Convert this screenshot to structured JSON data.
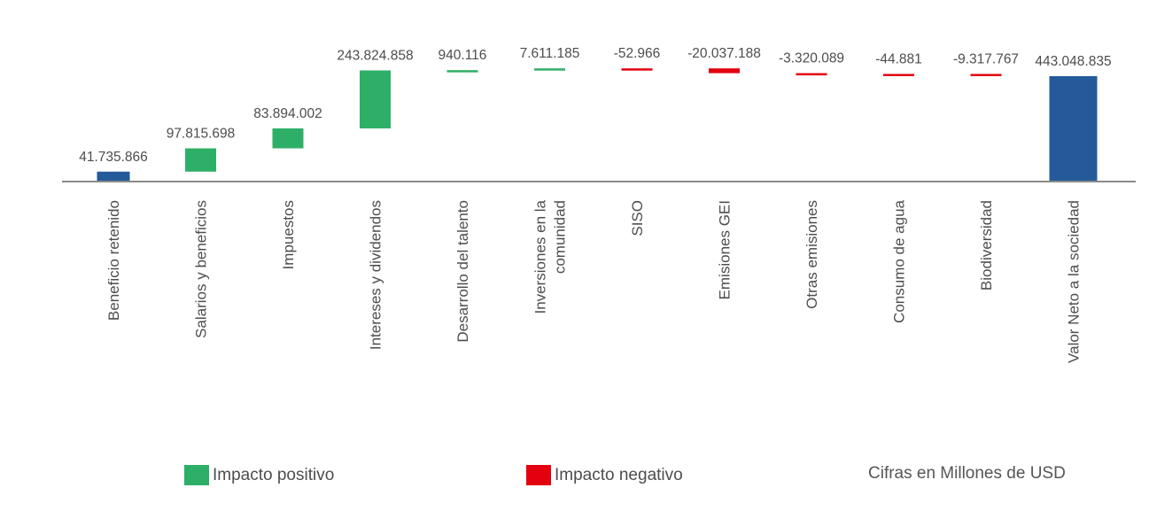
{
  "colors": {
    "positive": "#2eaf67",
    "negative": "#e3000f",
    "total": "#255a9a",
    "baseline": "#8a8a8a",
    "text": "#4d4d4d"
  },
  "legend": {
    "positive_label": "Impacto positivo",
    "negative_label": "Impacto negativo"
  },
  "note": "Cifras en Millones de USD",
  "chart_data": {
    "type": "bar",
    "subtype": "waterfall",
    "title": "",
    "xlabel": "",
    "ylabel": "",
    "unit": "Millones de USD",
    "grid": false,
    "legend_position": "bottom",
    "categories": [
      "Beneficio retenido",
      "Salarios y beneficios",
      "Impuestos",
      "Intereses y dividendos",
      "Desarrollo del talento",
      "Inversiones en la comunidad",
      "SISO",
      "Emisiones GEI",
      "Otras emisiones",
      "Consumo de agua",
      "Biodiversidad",
      "Valor Neto a la sociedad"
    ],
    "category_lines": [
      [
        "Beneficio retenido"
      ],
      [
        "Salarios y beneficios"
      ],
      [
        "Impuestos"
      ],
      [
        "Intereses y dividendos"
      ],
      [
        "Desarrollo del talento"
      ],
      [
        "Inversiones en la",
        "comunidad"
      ],
      [
        "SISO"
      ],
      [
        "Emisiones GEI"
      ],
      [
        "Otras emisiones"
      ],
      [
        "Consumo de agua"
      ],
      [
        "Biodiversidad"
      ],
      [
        "Valor Neto a la sociedad"
      ]
    ],
    "values": [
      41735866,
      97815698,
      83894002,
      243824858,
      940116,
      7611185,
      -52966,
      -20037188,
      -3320089,
      -44881,
      -9317767,
      443048835
    ],
    "value_labels": [
      "41.735.866",
      "97.815.698",
      "83.894.002",
      "243.824.858",
      "940.116",
      "7.611.185",
      "-52.966",
      "-20.037.188",
      "-3.320.089",
      "-44.881",
      "-9.317.767",
      "443.048.835"
    ],
    "kinds": [
      "base",
      "positive",
      "positive",
      "positive",
      "positive",
      "positive",
      "negative",
      "negative",
      "negative",
      "negative",
      "negative",
      "total"
    ]
  }
}
